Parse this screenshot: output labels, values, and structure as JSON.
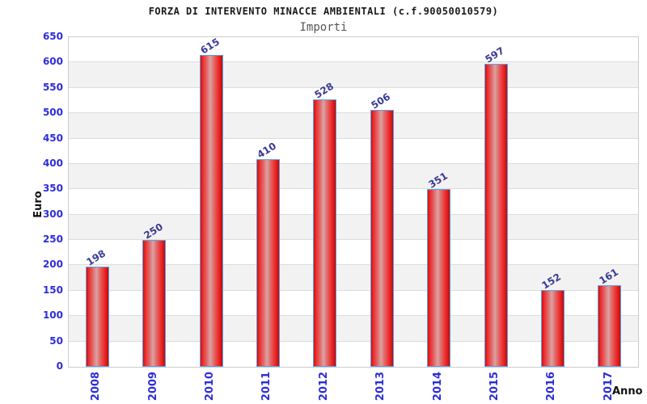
{
  "chart_data": {
    "type": "bar",
    "title": "FORZA DI INTERVENTO MINACCE AMBIENTALI (c.f.90050010579)",
    "subtitle": "Importi",
    "categories": [
      "2008",
      "2009",
      "2010",
      "2011",
      "2012",
      "2013",
      "2014",
      "2015",
      "2016",
      "2017"
    ],
    "values": [
      198,
      250,
      615,
      410,
      528,
      506,
      351,
      597,
      152,
      161
    ],
    "xlabel": "Anno",
    "ylabel": "Euro",
    "ylim": [
      0,
      650
    ],
    "ytick_step": 50,
    "ytick_labels": [
      "0",
      "50",
      "100",
      "150",
      "200",
      "250",
      "300",
      "350",
      "400",
      "450",
      "500",
      "550",
      "600",
      "650"
    ],
    "grid": "horizontal-alternating-bands",
    "legend": "none",
    "bar_value_labels_rotated": true,
    "x_tick_labels_rotated": true,
    "colors": {
      "bar_red": "#ee2424",
      "bar_highlight": "#dba2a2",
      "bar_border_blue": "#5ba0e6",
      "tick_label_blue": "#2d2dd9",
      "value_label_blue": "#3a3a94",
      "band_gray": "#f2f2f2",
      "grid_line": "#dcdcdc",
      "plot_border": "#cccccc",
      "title_color": "#1a1a1a",
      "subtitle_gray": "#555555",
      "axis_label_color": "#111111",
      "background": "#ffffff"
    }
  }
}
